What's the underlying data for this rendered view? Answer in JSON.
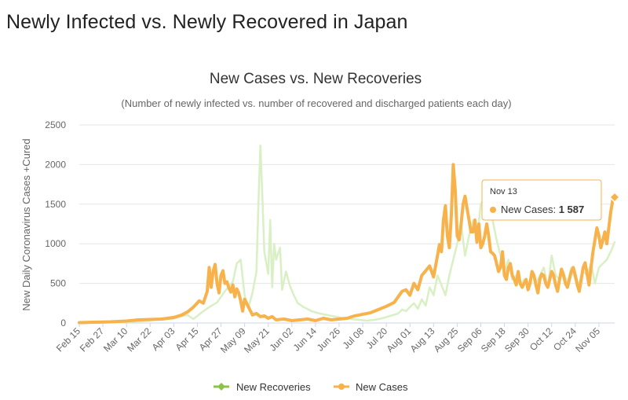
{
  "page": {
    "title": "Newly Infected vs. Newly Recovered in Japan"
  },
  "colors": {
    "recoveries": "#d9efc4",
    "recoveries_legend": "#8bc34a",
    "cases": "#f7b24b",
    "grid": "#e6e6e6",
    "axis_text": "#666666"
  },
  "chart_data": {
    "type": "line",
    "title": "New Cases vs. New Recoveries",
    "subtitle": "(Number of newly infected vs. number of recovered and discharged patients each day)",
    "ylabel": "New Daily Coronavirus Cases +Cured",
    "xlabel": "",
    "ylim": [
      0,
      2500
    ],
    "yticks": [
      0,
      500,
      1000,
      1500,
      2000,
      2500
    ],
    "x_start": "Feb 15",
    "x_end": "Nov 13",
    "x_tick_labels": [
      "Feb 15",
      "Feb 27",
      "Mar 10",
      "Mar 22",
      "Apr 03",
      "Apr 15",
      "Apr 27",
      "May 09",
      "May 21",
      "Jun 02",
      "Jun 14",
      "Jun 26",
      "Jul 08",
      "Jul 20",
      "Aug 01",
      "Aug 13",
      "Aug 25",
      "Sep 06",
      "Sep 18",
      "Sep 30",
      "Oct 12",
      "Oct 24",
      "Nov 05"
    ],
    "x_tick_step_days": 12,
    "total_days": 272,
    "series": [
      {
        "name": "New Recoveries",
        "key": "recoveries",
        "points": [
          [
            0,
            0
          ],
          [
            12,
            5
          ],
          [
            24,
            10
          ],
          [
            30,
            20
          ],
          [
            36,
            30
          ],
          [
            42,
            60
          ],
          [
            47,
            50
          ],
          [
            51,
            80
          ],
          [
            55,
            100
          ],
          [
            58,
            50
          ],
          [
            62,
            130
          ],
          [
            66,
            200
          ],
          [
            70,
            260
          ],
          [
            74,
            400
          ],
          [
            76,
            460
          ],
          [
            78,
            520
          ],
          [
            80,
            750
          ],
          [
            82,
            800
          ],
          [
            84,
            350
          ],
          [
            86,
            200
          ],
          [
            88,
            380
          ],
          [
            90,
            650
          ],
          [
            91,
            1500
          ],
          [
            92,
            2240
          ],
          [
            93,
            1600
          ],
          [
            94,
            900
          ],
          [
            96,
            620
          ],
          [
            97,
            1300
          ],
          [
            98,
            450
          ],
          [
            99,
            1000
          ],
          [
            100,
            800
          ],
          [
            102,
            950
          ],
          [
            103,
            420
          ],
          [
            105,
            650
          ],
          [
            107,
            470
          ],
          [
            109,
            350
          ],
          [
            111,
            250
          ],
          [
            114,
            200
          ],
          [
            118,
            150
          ],
          [
            122,
            120
          ],
          [
            126,
            100
          ],
          [
            130,
            80
          ],
          [
            134,
            60
          ],
          [
            138,
            50
          ],
          [
            142,
            40
          ],
          [
            146,
            30
          ],
          [
            150,
            40
          ],
          [
            154,
            60
          ],
          [
            158,
            90
          ],
          [
            162,
            120
          ],
          [
            164,
            170
          ],
          [
            166,
            150
          ],
          [
            168,
            200
          ],
          [
            170,
            250
          ],
          [
            172,
            180
          ],
          [
            174,
            300
          ],
          [
            176,
            220
          ],
          [
            178,
            450
          ],
          [
            180,
            350
          ],
          [
            182,
            600
          ],
          [
            184,
            480
          ],
          [
            186,
            350
          ],
          [
            188,
            600
          ],
          [
            190,
            800
          ],
          [
            192,
            1000
          ],
          [
            194,
            1250
          ],
          [
            196,
            850
          ],
          [
            198,
            1100
          ],
          [
            200,
            1300
          ],
          [
            202,
            1050
          ],
          [
            204,
            1500
          ],
          [
            206,
            1600
          ],
          [
            208,
            1450
          ],
          [
            210,
            1300
          ],
          [
            212,
            1050
          ],
          [
            214,
            850
          ],
          [
            216,
            650
          ],
          [
            218,
            800
          ],
          [
            220,
            550
          ],
          [
            222,
            600
          ],
          [
            224,
            480
          ],
          [
            226,
            550
          ],
          [
            228,
            450
          ],
          [
            230,
            650
          ],
          [
            232,
            500
          ],
          [
            234,
            600
          ],
          [
            236,
            700
          ],
          [
            238,
            450
          ],
          [
            240,
            850
          ],
          [
            242,
            600
          ],
          [
            244,
            550
          ],
          [
            246,
            650
          ],
          [
            248,
            500
          ],
          [
            250,
            700
          ],
          [
            252,
            550
          ],
          [
            254,
            500
          ],
          [
            256,
            650
          ],
          [
            258,
            600
          ],
          [
            260,
            750
          ],
          [
            262,
            500
          ],
          [
            264,
            700
          ],
          [
            266,
            750
          ],
          [
            268,
            800
          ],
          [
            270,
            900
          ],
          [
            272,
            1020
          ]
        ]
      },
      {
        "name": "New Cases",
        "key": "cases",
        "points": [
          [
            0,
            5
          ],
          [
            8,
            10
          ],
          [
            16,
            15
          ],
          [
            24,
            25
          ],
          [
            30,
            40
          ],
          [
            36,
            45
          ],
          [
            42,
            50
          ],
          [
            48,
            70
          ],
          [
            52,
            100
          ],
          [
            55,
            140
          ],
          [
            58,
            200
          ],
          [
            61,
            280
          ],
          [
            63,
            250
          ],
          [
            65,
            400
          ],
          [
            66,
            700
          ],
          [
            67,
            450
          ],
          [
            68,
            650
          ],
          [
            69,
            740
          ],
          [
            70,
            500
          ],
          [
            71,
            380
          ],
          [
            72,
            600
          ],
          [
            73,
            660
          ],
          [
            74,
            500
          ],
          [
            75,
            520
          ],
          [
            76,
            440
          ],
          [
            77,
            390
          ],
          [
            78,
            480
          ],
          [
            79,
            330
          ],
          [
            80,
            430
          ],
          [
            81,
            380
          ],
          [
            82,
            280
          ],
          [
            83,
            150
          ],
          [
            84,
            300
          ],
          [
            86,
            200
          ],
          [
            88,
            100
          ],
          [
            90,
            120
          ],
          [
            92,
            80
          ],
          [
            94,
            90
          ],
          [
            96,
            60
          ],
          [
            98,
            80
          ],
          [
            100,
            40
          ],
          [
            104,
            50
          ],
          [
            108,
            30
          ],
          [
            112,
            40
          ],
          [
            116,
            50
          ],
          [
            120,
            30
          ],
          [
            124,
            60
          ],
          [
            128,
            40
          ],
          [
            132,
            50
          ],
          [
            136,
            60
          ],
          [
            140,
            90
          ],
          [
            144,
            110
          ],
          [
            148,
            130
          ],
          [
            152,
            170
          ],
          [
            156,
            210
          ],
          [
            160,
            260
          ],
          [
            162,
            330
          ],
          [
            164,
            400
          ],
          [
            166,
            420
          ],
          [
            168,
            350
          ],
          [
            170,
            500
          ],
          [
            172,
            420
          ],
          [
            174,
            600
          ],
          [
            176,
            660
          ],
          [
            178,
            720
          ],
          [
            180,
            580
          ],
          [
            182,
            850
          ],
          [
            183,
            990
          ],
          [
            184,
            900
          ],
          [
            185,
            1300
          ],
          [
            186,
            1480
          ],
          [
            187,
            1100
          ],
          [
            188,
            950
          ],
          [
            189,
            1350
          ],
          [
            190,
            2000
          ],
          [
            191,
            1680
          ],
          [
            192,
            1100
          ],
          [
            193,
            1050
          ],
          [
            194,
            1250
          ],
          [
            195,
            1500
          ],
          [
            196,
            1600
          ],
          [
            197,
            1450
          ],
          [
            198,
            1300
          ],
          [
            199,
            1150
          ],
          [
            200,
            1150
          ],
          [
            201,
            1300
          ],
          [
            202,
            1020
          ],
          [
            203,
            1250
          ],
          [
            204,
            950
          ],
          [
            205,
            1000
          ],
          [
            206,
            1100
          ],
          [
            207,
            1250
          ],
          [
            208,
            1100
          ],
          [
            209,
            900
          ],
          [
            210,
            880
          ],
          [
            211,
            850
          ],
          [
            212,
            750
          ],
          [
            213,
            650
          ],
          [
            214,
            700
          ],
          [
            215,
            900
          ],
          [
            216,
            600
          ],
          [
            217,
            550
          ],
          [
            218,
            700
          ],
          [
            219,
            750
          ],
          [
            220,
            600
          ],
          [
            221,
            550
          ],
          [
            222,
            480
          ],
          [
            223,
            650
          ],
          [
            224,
            500
          ],
          [
            225,
            450
          ],
          [
            226,
            500
          ],
          [
            227,
            550
          ],
          [
            228,
            420
          ],
          [
            229,
            500
          ],
          [
            230,
            650
          ],
          [
            231,
            600
          ],
          [
            232,
            480
          ],
          [
            233,
            380
          ],
          [
            234,
            550
          ],
          [
            235,
            620
          ],
          [
            236,
            600
          ],
          [
            237,
            500
          ],
          [
            238,
            450
          ],
          [
            239,
            550
          ],
          [
            240,
            650
          ],
          [
            241,
            600
          ],
          [
            242,
            480
          ],
          [
            243,
            400
          ],
          [
            244,
            550
          ],
          [
            245,
            680
          ],
          [
            246,
            600
          ],
          [
            247,
            500
          ],
          [
            248,
            450
          ],
          [
            249,
            550
          ],
          [
            250,
            650
          ],
          [
            251,
            700
          ],
          [
            252,
            600
          ],
          [
            253,
            480
          ],
          [
            254,
            400
          ],
          [
            255,
            550
          ],
          [
            256,
            700
          ],
          [
            257,
            760
          ],
          [
            258,
            620
          ],
          [
            259,
            480
          ],
          [
            260,
            700
          ],
          [
            261,
            900
          ],
          [
            262,
            1050
          ],
          [
            263,
            1200
          ],
          [
            264,
            1100
          ],
          [
            265,
            950
          ],
          [
            266,
            1050
          ],
          [
            267,
            1150
          ],
          [
            268,
            1000
          ],
          [
            269,
            1200
          ],
          [
            270,
            1400
          ],
          [
            271,
            1550
          ],
          [
            272,
            1587
          ]
        ]
      }
    ],
    "tooltip": {
      "date": "Nov 13",
      "series": "New Cases",
      "separator": ": ",
      "value_text": "1 587",
      "value": 1587,
      "day_index": 272
    },
    "legend": [
      "New Recoveries",
      "New Cases"
    ],
    "legend_position": "bottom-center"
  }
}
